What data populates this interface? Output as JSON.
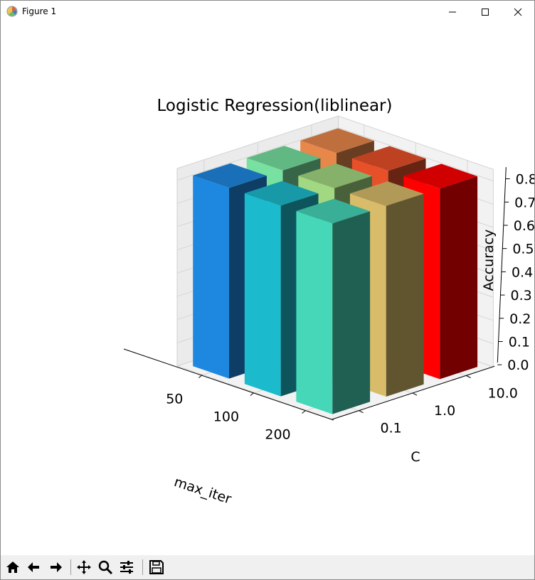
{
  "window": {
    "title": "Figure 1"
  },
  "toolbar": {
    "buttons": [
      "home-icon",
      "back-icon",
      "forward-icon",
      "pan-icon",
      "zoom-icon",
      "configure-subplots-icon",
      "save-icon"
    ]
  },
  "chart_data": {
    "type": "bar3d",
    "title": "Logistic Regression(liblinear)",
    "xlabel": "max_iter",
    "ylabel": "C",
    "zlabel": "Accuracy",
    "x_ticks": [
      "50",
      "100",
      "200"
    ],
    "y_ticks": [
      "0.1",
      "1.0",
      "10.0"
    ],
    "z_ticks": [
      "0.0",
      "0.1",
      "0.2",
      "0.3",
      "0.4",
      "0.5",
      "0.6",
      "0.7",
      "0.8"
    ],
    "zlim": [
      0,
      0.85
    ],
    "bars": [
      {
        "max_iter": "50",
        "C": "10.0",
        "value": 0.82,
        "color": "#e8874a"
      },
      {
        "max_iter": "100",
        "C": "10.0",
        "value": 0.82,
        "color": "#e8502a"
      },
      {
        "max_iter": "200",
        "C": "10.0",
        "value": 0.82,
        "color": "#ff0000"
      },
      {
        "max_iter": "50",
        "C": "1.0",
        "value": 0.82,
        "color": "#78e0a0"
      },
      {
        "max_iter": "100",
        "C": "1.0",
        "value": 0.82,
        "color": "#a2d882"
      },
      {
        "max_iter": "200",
        "C": "1.0",
        "value": 0.82,
        "color": "#d8bc6a"
      },
      {
        "max_iter": "50",
        "C": "0.1",
        "value": 0.82,
        "color": "#1e88e0"
      },
      {
        "max_iter": "100",
        "C": "0.1",
        "value": 0.82,
        "color": "#1cbacd"
      },
      {
        "max_iter": "200",
        "C": "0.1",
        "value": 0.82,
        "color": "#46d6b8"
      }
    ]
  }
}
